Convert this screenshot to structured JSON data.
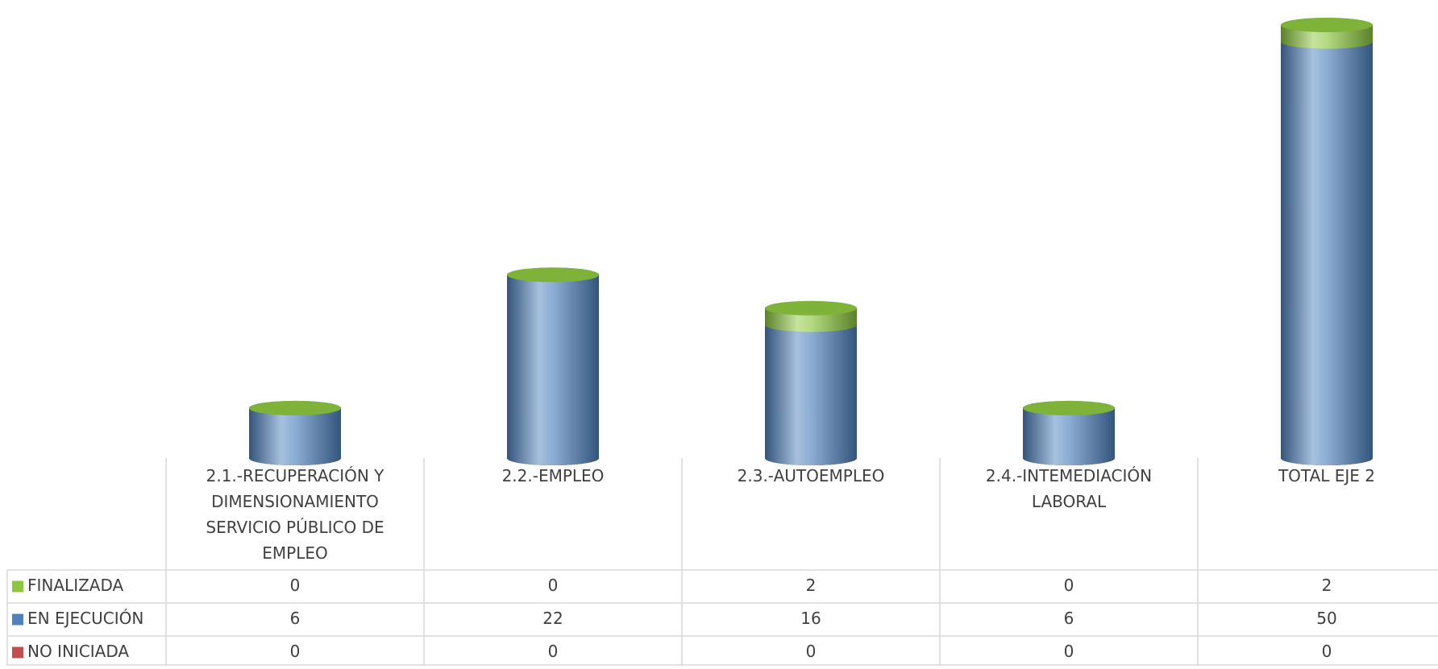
{
  "chart_data": {
    "type": "bar",
    "stacked": true,
    "categories": [
      "2.1.-RECUPERACIÓN Y DIMENSIONAMIENTO SERVICIO PÚBLICO DE EMPLEO",
      "2.2.-EMPLEO",
      "2.3.-AUTOEMPLEO",
      "2.4.-INTEMEDIACIÓN LABORAL",
      "TOTAL EJE 2"
    ],
    "series": [
      {
        "name": "FINALIZADA",
        "color": "#8cc63f",
        "values": [
          0,
          0,
          2,
          0,
          2
        ]
      },
      {
        "name": "EN EJECUCIÓN",
        "color": "#4f81bd",
        "values": [
          6,
          22,
          16,
          6,
          50
        ]
      },
      {
        "name": "NO INICIADA",
        "color": "#c0504d",
        "values": [
          0,
          0,
          0,
          0,
          0
        ]
      }
    ]
  }
}
